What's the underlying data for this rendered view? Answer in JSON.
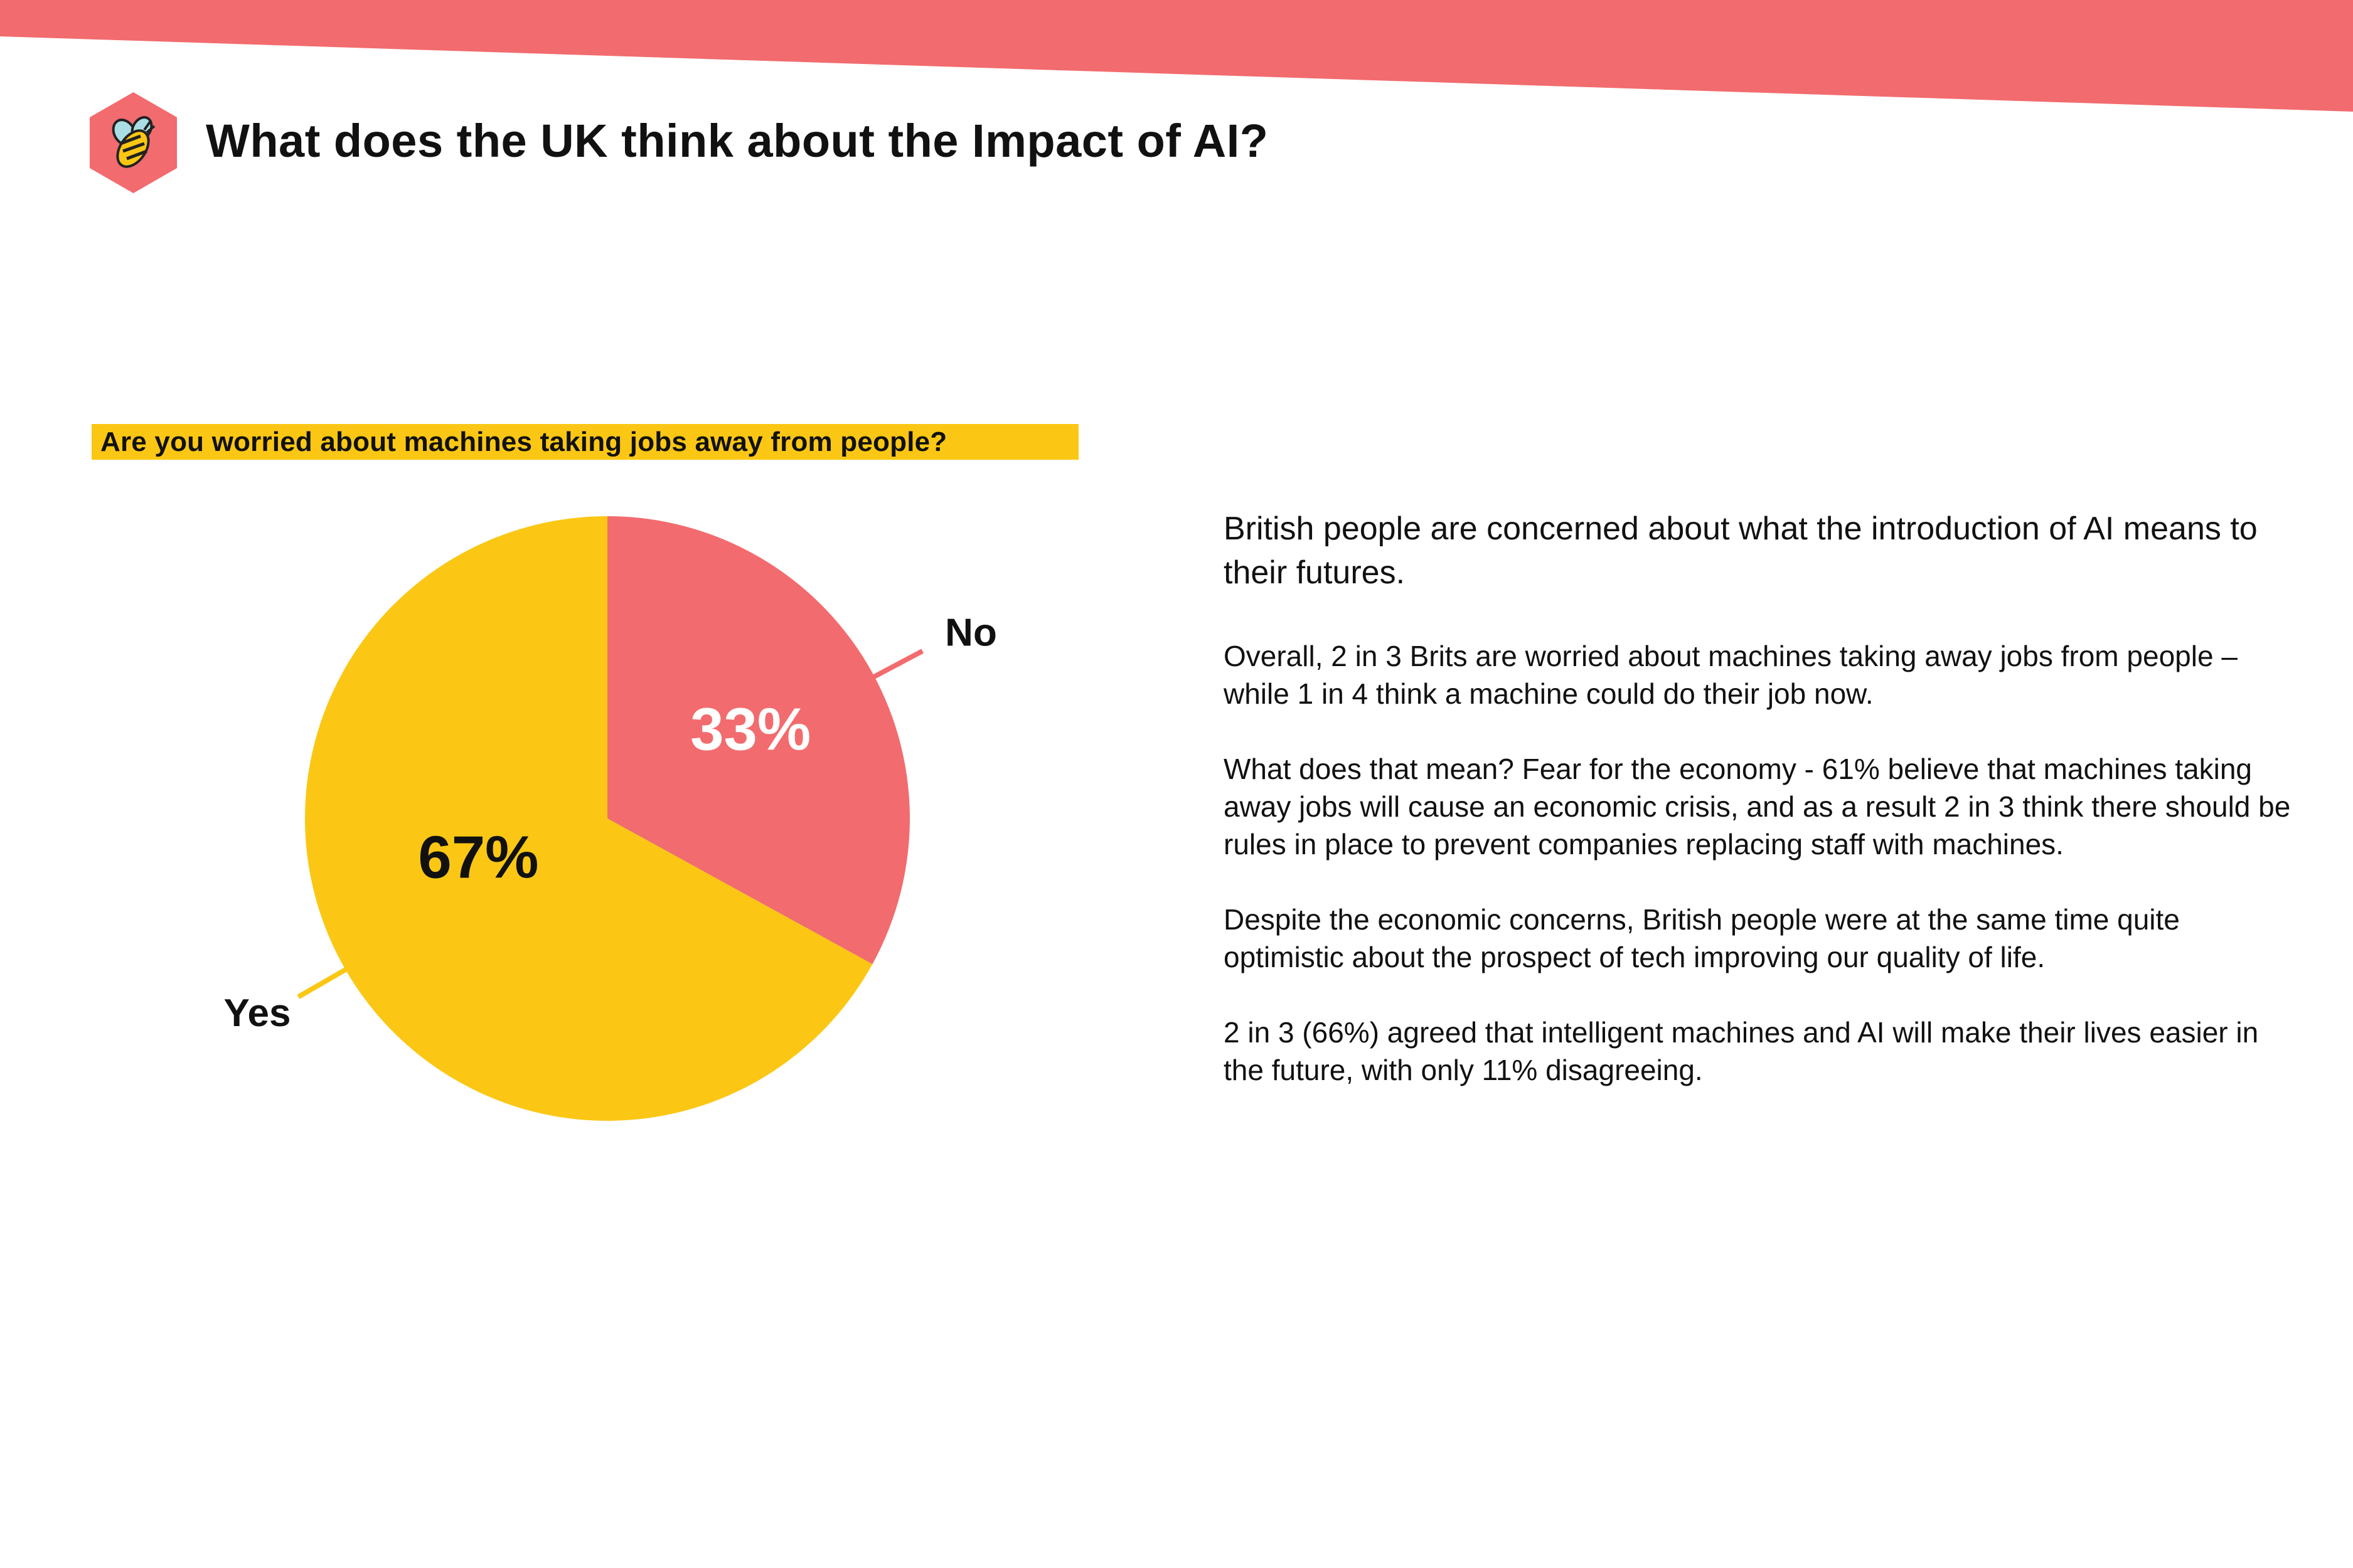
{
  "header": {
    "title": "What does the UK think about the Impact of AI?",
    "logo_icon": "bee-hexagon-icon"
  },
  "colors": {
    "accent": "#f26b6e",
    "yes": "#fbc714",
    "no": "#f26b6e",
    "text": "#111111"
  },
  "chart_data": {
    "type": "pie",
    "title": "Are you worried about machines taking jobs away from people?",
    "categories": [
      "No",
      "Yes"
    ],
    "values": [
      33,
      67
    ],
    "data_labels": [
      "33%",
      "67%"
    ],
    "colors": [
      "#f26b6e",
      "#fbc714"
    ],
    "start_angle_deg": 0,
    "direction": "clockwise"
  },
  "article": {
    "lead": "British people are concerned about what the introduction of AI means to their futures.",
    "paragraphs": [
      "Overall, 2 in 3 Brits are worried about machines taking away jobs from people – while 1 in 4 think a machine could do their job now.",
      "What does that mean? Fear for the economy - 61% believe that machines taking away jobs will cause an economic crisis, and as a result 2 in 3 think there should be rules in place to prevent companies replacing staff with machines.",
      "Despite the economic concerns, British people were at the same time quite optimistic about the prospect of tech improving our quality of life.",
      "2 in 3 (66%) agreed that intelligent machines and AI will make their lives easier in the future, with only 11% disagreeing."
    ]
  }
}
